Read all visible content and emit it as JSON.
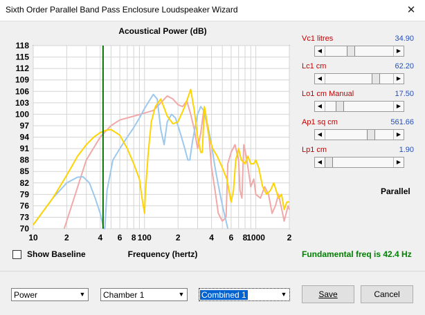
{
  "window": {
    "title": "Sixth Order Parallel Band Pass Enclosure Loudspeaker Wizard",
    "close_glyph": "✕"
  },
  "chart_data": {
    "type": "line",
    "title": "Acoustical Power (dB)",
    "xlabel": "Frequency (hertz)",
    "ylabel": "",
    "xscale": "log",
    "xlim": [
      10,
      2000
    ],
    "ylim": [
      70,
      118
    ],
    "x_ticks": [
      "10",
      "2",
      "4",
      "6",
      "8",
      "100",
      "2",
      "4",
      "6",
      "8",
      "1000",
      "2"
    ],
    "y_ticks": [
      118,
      115,
      112,
      109,
      106,
      103,
      100,
      97,
      94,
      91,
      88,
      85,
      82,
      79,
      76,
      73,
      70
    ],
    "marker_line": {
      "x": 42.4,
      "color": "#007000"
    },
    "series": [
      {
        "color": "#f0a8a8",
        "points": [
          [
            19,
            70
          ],
          [
            30,
            88
          ],
          [
            40,
            94
          ],
          [
            50,
            97
          ],
          [
            60,
            98.5
          ],
          [
            80,
            99.5
          ],
          [
            100,
            100.3
          ],
          [
            120,
            101
          ],
          [
            140,
            103
          ],
          [
            160,
            104.8
          ],
          [
            180,
            104
          ],
          [
            200,
            102.5
          ],
          [
            220,
            102
          ],
          [
            240,
            103.5
          ],
          [
            260,
            100
          ],
          [
            280,
            96
          ],
          [
            300,
            91
          ],
          [
            320,
            95
          ],
          [
            340,
            101
          ],
          [
            360,
            98
          ],
          [
            380,
            94
          ],
          [
            400,
            86
          ],
          [
            430,
            80
          ],
          [
            460,
            74
          ],
          [
            500,
            72
          ],
          [
            540,
            73
          ],
          [
            560,
            87
          ],
          [
            600,
            90
          ],
          [
            650,
            92
          ],
          [
            700,
            88
          ],
          [
            720,
            80
          ],
          [
            750,
            78
          ],
          [
            780,
            92
          ],
          [
            820,
            89
          ],
          [
            860,
            85
          ],
          [
            900,
            81
          ],
          [
            960,
            83
          ],
          [
            1000,
            79
          ],
          [
            1100,
            78
          ],
          [
            1200,
            81
          ],
          [
            1300,
            79
          ],
          [
            1400,
            74
          ],
          [
            1500,
            76
          ],
          [
            1600,
            79
          ],
          [
            1800,
            72
          ],
          [
            1950,
            76
          ],
          [
            2000,
            75
          ]
        ]
      },
      {
        "color": "#9cc8ee",
        "points": [
          [
            10,
            71
          ],
          [
            15,
            78
          ],
          [
            20,
            82
          ],
          [
            25,
            83.5
          ],
          [
            28,
            83.6
          ],
          [
            32,
            82
          ],
          [
            36,
            78
          ],
          [
            40,
            74
          ],
          [
            43,
            70
          ],
          [
            44,
            70
          ],
          [
            46,
            80
          ],
          [
            52,
            88
          ],
          [
            60,
            91
          ],
          [
            70,
            94
          ],
          [
            80,
            96.5
          ],
          [
            90,
            99
          ],
          [
            100,
            101.5
          ],
          [
            110,
            103.5
          ],
          [
            120,
            105.2
          ],
          [
            130,
            104
          ],
          [
            140,
            96
          ],
          [
            150,
            92
          ],
          [
            160,
            98
          ],
          [
            175,
            100
          ],
          [
            190,
            99
          ],
          [
            210,
            95
          ],
          [
            230,
            91
          ],
          [
            245,
            88
          ],
          [
            255,
            88
          ],
          [
            270,
            93
          ],
          [
            300,
            100
          ],
          [
            320,
            102
          ],
          [
            340,
            101
          ],
          [
            370,
            97
          ],
          [
            400,
            92
          ],
          [
            430,
            86
          ],
          [
            470,
            80
          ],
          [
            510,
            75
          ],
          [
            540,
            72
          ],
          [
            560,
            70
          ]
        ]
      },
      {
        "color": "#ffd400",
        "points": [
          [
            10,
            71
          ],
          [
            15,
            78
          ],
          [
            20,
            84
          ],
          [
            25,
            89
          ],
          [
            30,
            92
          ],
          [
            35,
            94
          ],
          [
            40,
            95.2
          ],
          [
            45,
            95.8
          ],
          [
            50,
            96
          ],
          [
            60,
            94.5
          ],
          [
            70,
            91
          ],
          [
            80,
            87
          ],
          [
            90,
            83
          ],
          [
            95,
            78
          ],
          [
            100,
            74
          ],
          [
            102,
            80
          ],
          [
            108,
            90
          ],
          [
            115,
            98
          ],
          [
            125,
            102
          ],
          [
            140,
            104
          ],
          [
            160,
            99.5
          ],
          [
            180,
            97.5
          ],
          [
            200,
            98
          ],
          [
            230,
            102
          ],
          [
            260,
            106.5
          ],
          [
            280,
            101
          ],
          [
            300,
            94
          ],
          [
            320,
            90
          ],
          [
            330,
            90
          ],
          [
            345,
            102
          ],
          [
            360,
            99
          ],
          [
            380,
            94
          ],
          [
            410,
            91
          ],
          [
            450,
            89
          ],
          [
            500,
            86
          ],
          [
            550,
            83
          ],
          [
            600,
            77
          ],
          [
            630,
            80
          ],
          [
            660,
            88
          ],
          [
            700,
            91
          ],
          [
            740,
            88
          ],
          [
            800,
            87
          ],
          [
            850,
            89
          ],
          [
            900,
            87
          ],
          [
            960,
            87
          ],
          [
            1000,
            88
          ],
          [
            1060,
            86
          ],
          [
            1150,
            81
          ],
          [
            1250,
            79
          ],
          [
            1350,
            80
          ],
          [
            1450,
            82
          ],
          [
            1600,
            78
          ],
          [
            1700,
            79
          ],
          [
            1800,
            75
          ],
          [
            1900,
            77
          ],
          [
            2000,
            77
          ]
        ]
      }
    ]
  },
  "baseline": {
    "label": "Show Baseline"
  },
  "params": [
    {
      "label": "Vc1  litres",
      "value": "34.90",
      "slider": 0.36
    },
    {
      "label": "Lc1  cm",
      "value": "62.20",
      "slider": 0.77
    },
    {
      "label": "Lo1  cm  Manual",
      "value": "17.50",
      "slider": 0.18
    },
    {
      "label": "Ap1  sq cm",
      "value": "561.66",
      "slider": 0.69
    },
    {
      "label": "Lp1  cm",
      "value": "1.90",
      "slider": 0.0
    }
  ],
  "parallel_label": "Parallel",
  "fundamental": "Fundamental freq is 42.4 Hz",
  "combos": {
    "power": "Power",
    "chamber": "Chamber 1",
    "combined": "Combined 1",
    "arrow": "▼"
  },
  "buttons": {
    "save": "Save",
    "cancel": "Cancel"
  }
}
